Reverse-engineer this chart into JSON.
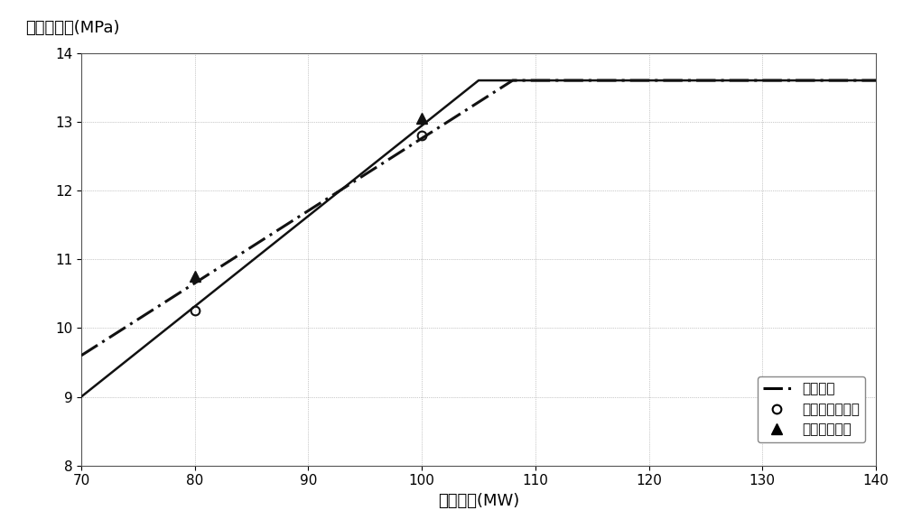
{
  "title_y": "主蒸汽压力(MPa)",
  "title_x": "机组负荷(MW)",
  "xlim": [
    70,
    140
  ],
  "ylim": [
    8,
    14
  ],
  "xticks": [
    70,
    80,
    90,
    100,
    110,
    120,
    130,
    140
  ],
  "yticks": [
    8,
    9,
    10,
    11,
    12,
    13,
    14
  ],
  "background_color": "#ffffff",
  "solid_line": {
    "x": [
      70,
      105,
      140
    ],
    "y": [
      9.0,
      13.6,
      13.6
    ],
    "color": "#111111",
    "linewidth": 1.8,
    "linestyle": "solid"
  },
  "dashdot_line": {
    "x": [
      70,
      108,
      140
    ],
    "y": [
      9.6,
      13.6,
      13.6
    ],
    "color": "#111111",
    "linewidth": 2.2
  },
  "circle_points": {
    "x": [
      80,
      100
    ],
    "y": [
      10.25,
      12.8
    ],
    "color": "#111111",
    "markersize": 7
  },
  "triangle_points": {
    "x": [
      80,
      100
    ],
    "y": [
      10.75,
      13.05
    ],
    "color": "#111111",
    "markersize": 9
  },
  "legend_labels": [
    "实际定压",
    "不供热两阀滑压",
    "供热两阀滑压"
  ],
  "font_size_axis_label": 13,
  "font_size_tick": 11,
  "font_size_legend": 11
}
